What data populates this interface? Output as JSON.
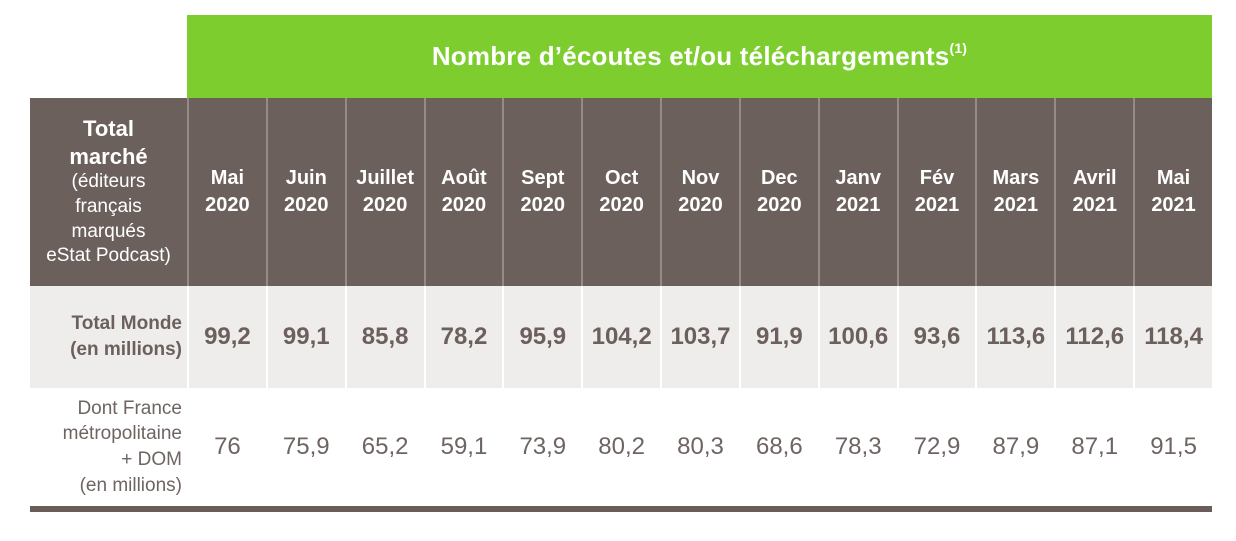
{
  "banner": {
    "title": "Nombre d’écoutes et/ou téléchargements",
    "superscript": "(1)"
  },
  "header": {
    "label_title": "Total\nmarché",
    "label_subtitle": "(éditeurs\nfrançais\nmarqués\neStat Podcast)",
    "months": [
      "Mai\n2020",
      "Juin\n2020",
      "Juillet\n2020",
      "Août\n2020",
      "Sept\n2020",
      "Oct\n2020",
      "Nov\n2020",
      "Dec\n2020",
      "Janv\n2021",
      "Fév\n2021",
      "Mars\n2021",
      "Avril\n2021",
      "Mai\n2021"
    ]
  },
  "rows": [
    {
      "label": "Total Monde\n(en millions)",
      "values": [
        "99,2",
        "99,1",
        "85,8",
        "78,2",
        "95,9",
        "104,2",
        "103,7",
        "91,9",
        "100,6",
        "93,6",
        "113,6",
        "112,6",
        "118,4"
      ]
    },
    {
      "label": "Dont France\nmétropolitaine\n+ DOM\n(en millions)",
      "values": [
        "76",
        "75,9",
        "65,2",
        "59,1",
        "73,9",
        "80,2",
        "80,3",
        "68,6",
        "78,3",
        "72,9",
        "87,9",
        "87,1",
        "91,5"
      ]
    }
  ],
  "colors": {
    "green": "#7ECD2E",
    "brown": "#6C605D",
    "divider": "#948A87",
    "shaded_row": "#EFEDEB",
    "text": "#6C605D",
    "text_light": "#6E6562",
    "rule": "#695D59",
    "white": "#FFFFFF"
  }
}
